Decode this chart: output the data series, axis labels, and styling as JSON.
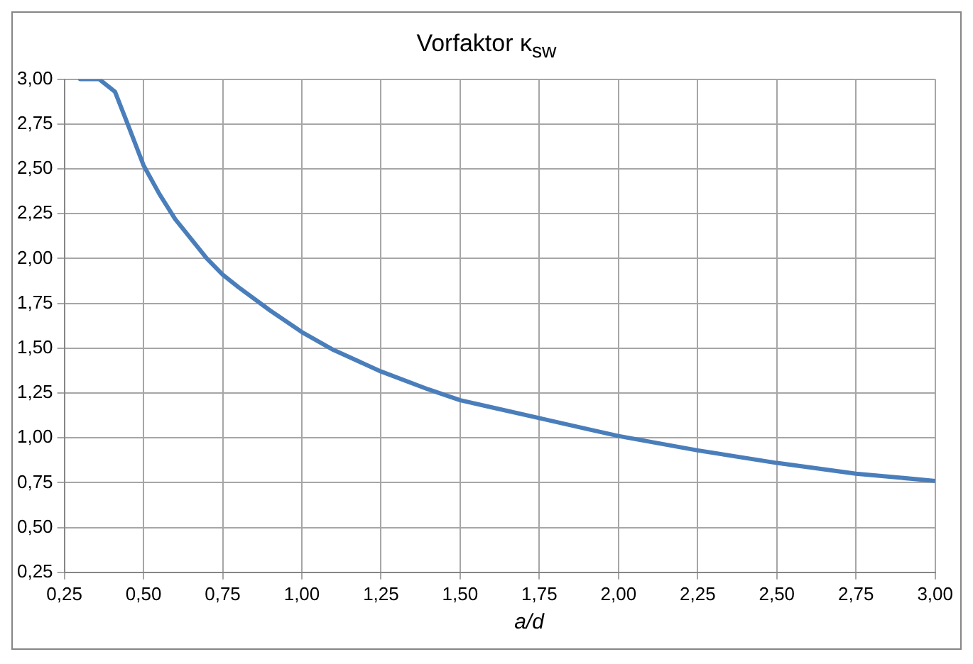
{
  "chart_data": {
    "type": "line",
    "title": "Vorfaktor κ$_{sw}$",
    "xlabel": "a/d",
    "x": [
      0.3,
      0.36,
      0.41,
      0.45,
      0.5,
      0.55,
      0.6,
      0.65,
      0.7,
      0.75,
      0.8,
      0.9,
      1.0,
      1.1,
      1.25,
      1.4,
      1.5,
      1.6,
      1.75,
      1.9,
      2.0,
      2.25,
      2.5,
      2.75,
      3.0
    ],
    "series": [
      {
        "color": "#4a7ebb",
        "values": [
          3.0,
          3.0,
          2.93,
          2.75,
          2.52,
          2.36,
          2.22,
          2.11,
          2.0,
          1.91,
          1.84,
          1.71,
          1.59,
          1.49,
          1.37,
          1.27,
          1.21,
          1.17,
          1.11,
          1.05,
          1.01,
          0.93,
          0.86,
          0.8,
          0.76
        ]
      }
    ],
    "xlim": [
      0.25,
      3.0
    ],
    "ylim": [
      0.25,
      3.0
    ],
    "xticks": [
      {
        "value": 0.25,
        "label": "0,25"
      },
      {
        "value": 0.5,
        "label": "0,50"
      },
      {
        "value": 0.75,
        "label": "0,75"
      },
      {
        "value": 1.0,
        "label": "1,00"
      },
      {
        "value": 1.25,
        "label": "1,25"
      },
      {
        "value": 1.5,
        "label": "1,50"
      },
      {
        "value": 1.75,
        "label": "1,75"
      },
      {
        "value": 2.0,
        "label": "2,00"
      },
      {
        "value": 2.25,
        "label": "2,25"
      },
      {
        "value": 2.5,
        "label": "2,50"
      },
      {
        "value": 2.75,
        "label": "2,75"
      },
      {
        "value": 3.0,
        "label": "3,00"
      }
    ],
    "yticks": [
      {
        "value": 0.25,
        "label": "0,25"
      },
      {
        "value": 0.5,
        "label": "0,50"
      },
      {
        "value": 0.75,
        "label": "0,75"
      },
      {
        "value": 1.0,
        "label": "1,00"
      },
      {
        "value": 1.25,
        "label": "1,25"
      },
      {
        "value": 1.5,
        "label": "1,50"
      },
      {
        "value": 1.75,
        "label": "1,75"
      },
      {
        "value": 2.0,
        "label": "2,00"
      },
      {
        "value": 2.25,
        "label": "2,25"
      },
      {
        "value": 2.5,
        "label": "2,50"
      },
      {
        "value": 2.75,
        "label": "2,75"
      },
      {
        "value": 3.0,
        "label": "3,00"
      }
    ],
    "grid": true,
    "legend": false,
    "marker": "none",
    "line_style": "solid"
  }
}
